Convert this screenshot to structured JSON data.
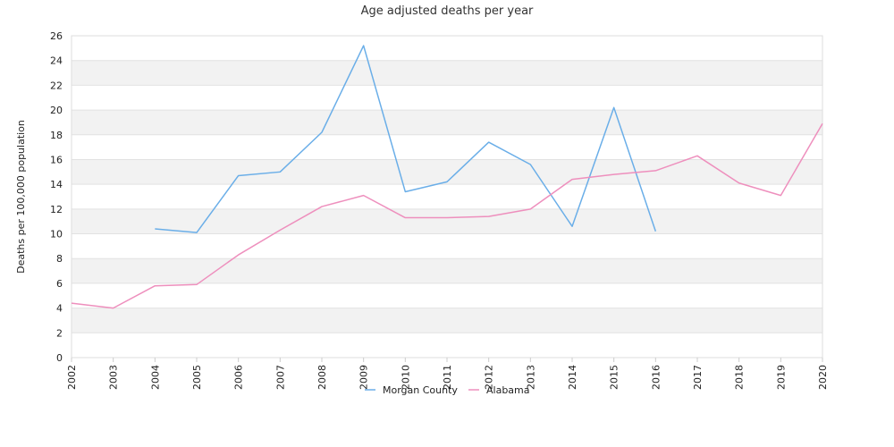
{
  "chart_data": {
    "type": "line",
    "title": "Age adjusted deaths per year",
    "ylabel": "Deaths per 100,000 population",
    "xlabel": "",
    "x": [
      "2002",
      "2003",
      "2004",
      "2005",
      "2006",
      "2007",
      "2008",
      "2009",
      "2010",
      "2011",
      "2012",
      "2013",
      "2014",
      "2015",
      "2016",
      "2017",
      "2018",
      "2019",
      "2020"
    ],
    "ylim": [
      0,
      26
    ],
    "yticks": [
      0,
      2,
      4,
      6,
      8,
      10,
      12,
      14,
      16,
      18,
      20,
      22,
      24,
      26
    ],
    "grid": "horizontal alternating bands",
    "legend_position": "bottom-center",
    "series": [
      {
        "name": "Morgan County",
        "color": "#6aaee8",
        "values": [
          null,
          null,
          10.4,
          10.1,
          14.7,
          15.0,
          18.2,
          25.2,
          13.4,
          14.2,
          17.4,
          15.6,
          10.6,
          20.2,
          10.2,
          null,
          null,
          null,
          null
        ]
      },
      {
        "name": "Alabama",
        "color": "#ee8fbd",
        "values": [
          4.4,
          4.0,
          5.8,
          5.9,
          8.3,
          10.3,
          12.2,
          13.1,
          11.3,
          11.3,
          11.4,
          12.0,
          14.4,
          14.8,
          15.1,
          16.3,
          14.1,
          13.1,
          18.9
        ]
      }
    ]
  }
}
